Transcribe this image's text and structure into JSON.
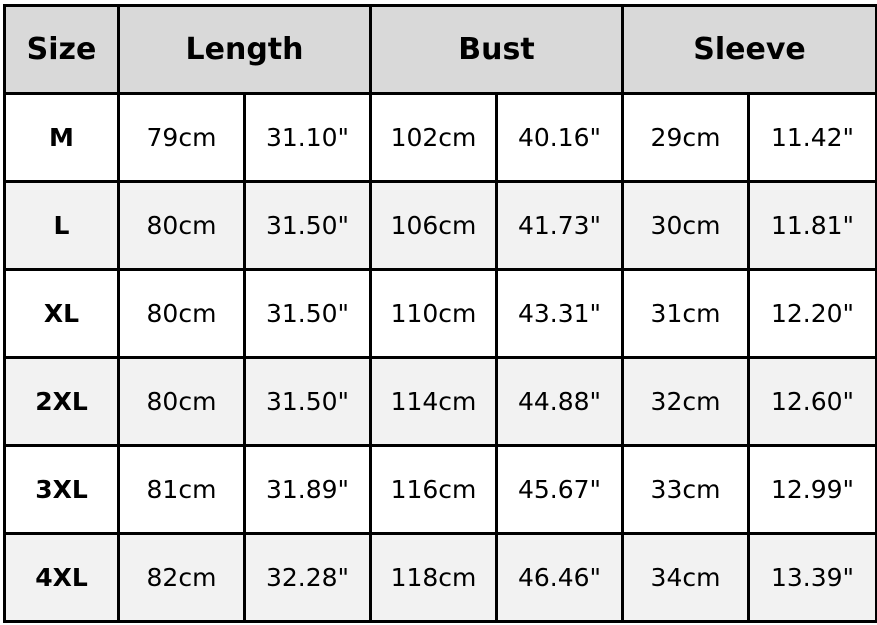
{
  "headers": {
    "size": "Size",
    "length": "Length",
    "bust": "Bust",
    "sleeve": "Sleeve"
  },
  "colors": {
    "header_bg": "#d9d9d9",
    "alt_row_bg": "#f2f2f2",
    "border": "#000000"
  },
  "rows": [
    {
      "size": "M",
      "length_cm": "79cm",
      "length_in": "31.10\"",
      "bust_cm": "102cm",
      "bust_in": "40.16\"",
      "sleeve_cm": "29cm",
      "sleeve_in": "11.42\""
    },
    {
      "size": "L",
      "length_cm": "80cm",
      "length_in": "31.50\"",
      "bust_cm": "106cm",
      "bust_in": "41.73\"",
      "sleeve_cm": "30cm",
      "sleeve_in": "11.81\""
    },
    {
      "size": "XL",
      "length_cm": "80cm",
      "length_in": "31.50\"",
      "bust_cm": "110cm",
      "bust_in": "43.31\"",
      "sleeve_cm": "31cm",
      "sleeve_in": "12.20\""
    },
    {
      "size": "2XL",
      "length_cm": "80cm",
      "length_in": "31.50\"",
      "bust_cm": "114cm",
      "bust_in": "44.88\"",
      "sleeve_cm": "32cm",
      "sleeve_in": "12.60\""
    },
    {
      "size": "3XL",
      "length_cm": "81cm",
      "length_in": "31.89\"",
      "bust_cm": "116cm",
      "bust_in": "45.67\"",
      "sleeve_cm": "33cm",
      "sleeve_in": "12.99\""
    },
    {
      "size": "4XL",
      "length_cm": "82cm",
      "length_in": "32.28\"",
      "bust_cm": "118cm",
      "bust_in": "46.46\"",
      "sleeve_cm": "34cm",
      "sleeve_in": "13.39\""
    }
  ]
}
